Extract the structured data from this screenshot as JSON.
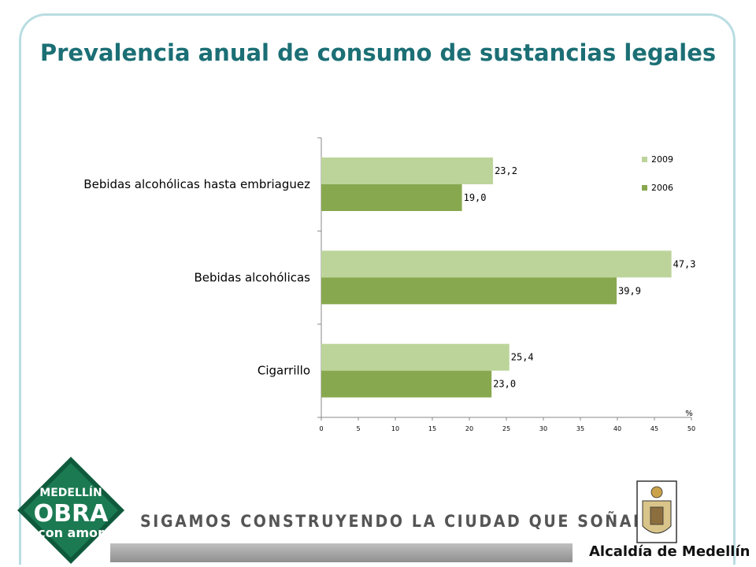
{
  "title": "Prevalencia anual de consumo de sustancias legales",
  "chart_data": {
    "type": "bar",
    "orientation": "horizontal",
    "categories": [
      "Bebidas alcohólicas hasta embriaguez",
      "Bebidas alcohólicas",
      "Cigarrillo"
    ],
    "series": [
      {
        "name": "2009",
        "values": [
          23.2,
          47.3,
          25.4
        ],
        "labels": [
          "23,2",
          "47,3",
          "25,4"
        ],
        "color": "#bcd49a"
      },
      {
        "name": "2006",
        "values": [
          19.0,
          39.9,
          23.0
        ],
        "labels": [
          "19,0",
          "39,9",
          "23,0"
        ],
        "color": "#88a84f"
      }
    ],
    "xlim": [
      0,
      50
    ],
    "xticks": [
      "0",
      "5",
      "10",
      "15",
      "20",
      "25",
      "30",
      "35",
      "40",
      "45",
      "50"
    ],
    "xunit": "%",
    "legend_position": "top-right",
    "grid": false
  },
  "footer": {
    "slogan": "SIGAMOS CONSTRUYENDO LA CIUDAD QUE SOÑAMOS",
    "alcaldia": "Alcaldía de Medellín",
    "logo": {
      "line1": "MEDELLÍN",
      "line2": "OBRA",
      "line3": "con amor",
      "color": "#1b7a52"
    }
  }
}
